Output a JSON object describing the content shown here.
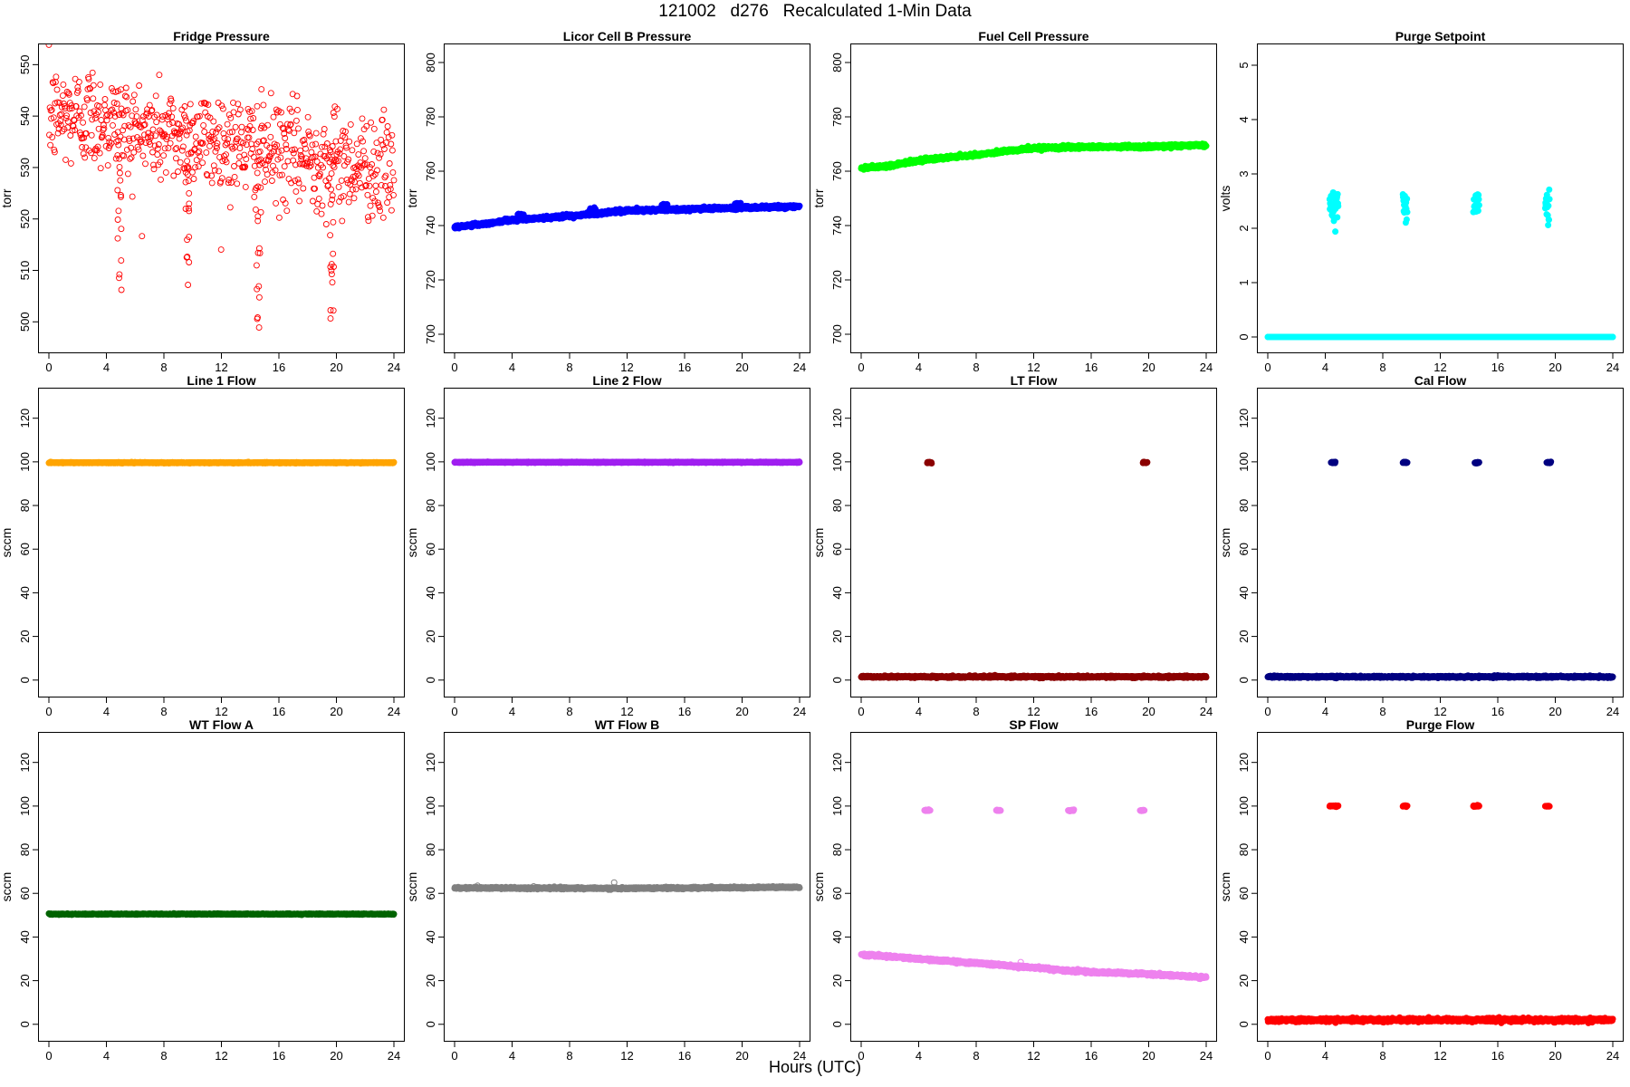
{
  "header": {
    "title": "121002   d276   Recalculated 1-Min Data"
  },
  "footer": {
    "xlabel": "Hours (UTC)"
  },
  "chart_data": [
    {
      "name": "fridge-pressure",
      "type": "scatter",
      "title": "Fridge Pressure",
      "ylabel": "torr",
      "color": "#ff0000",
      "marker": "open-circle",
      "xlim": [
        0,
        24
      ],
      "ylim": [
        496,
        552
      ],
      "xticks": [
        0,
        4,
        8,
        12,
        16,
        20,
        24
      ],
      "yticks": [
        500,
        510,
        520,
        530,
        540,
        550
      ],
      "trend": [
        [
          0,
          540
        ],
        [
          3,
          540
        ],
        [
          6,
          537
        ],
        [
          9,
          536
        ],
        [
          12,
          535
        ],
        [
          15,
          533
        ],
        [
          18,
          532
        ],
        [
          21,
          531
        ],
        [
          24,
          529
        ]
      ],
      "noise_sd": 5,
      "dips": [
        [
          4.9,
          506
        ],
        [
          9.6,
          501
        ],
        [
          14.6,
          498
        ],
        [
          19.7,
          497
        ]
      ]
    },
    {
      "name": "licor-cell-b-pressure",
      "type": "scatter",
      "title": "Licor Cell B Pressure",
      "ylabel": "torr",
      "color": "#0000ff",
      "marker": "filled",
      "xlim": [
        0,
        24
      ],
      "ylim": [
        697,
        803
      ],
      "xticks": [
        0,
        4,
        8,
        12,
        16,
        20,
        24
      ],
      "yticks": [
        700,
        720,
        740,
        760,
        780,
        800
      ],
      "trend": [
        [
          0,
          739.5
        ],
        [
          2,
          740.5
        ],
        [
          4,
          742
        ],
        [
          8,
          743.5
        ],
        [
          12,
          745.5
        ],
        [
          16,
          746
        ],
        [
          20,
          746.5
        ],
        [
          24,
          747
        ]
      ],
      "noise_sd": 0.3,
      "bumps": [
        [
          4.6,
          744
        ],
        [
          9.6,
          746
        ],
        [
          14.6,
          747.5
        ],
        [
          19.7,
          748
        ]
      ]
    },
    {
      "name": "fuel-cell-pressure",
      "type": "scatter",
      "title": "Fuel Cell Pressure",
      "ylabel": "torr",
      "color": "#00ff00",
      "marker": "filled",
      "xlim": [
        0,
        24
      ],
      "ylim": [
        697,
        803
      ],
      "xticks": [
        0,
        4,
        8,
        12,
        16,
        20,
        24
      ],
      "yticks": [
        700,
        720,
        740,
        760,
        780,
        800
      ],
      "trend": [
        [
          0,
          761
        ],
        [
          2,
          762
        ],
        [
          4,
          764
        ],
        [
          8,
          766
        ],
        [
          12,
          768.5
        ],
        [
          16,
          769
        ],
        [
          20,
          769
        ],
        [
          23,
          769.5
        ],
        [
          24,
          769.5
        ]
      ],
      "noise_sd": 0.3
    },
    {
      "name": "purge-setpoint",
      "type": "scatter",
      "title": "Purge Setpoint",
      "ylabel": "volts",
      "color": "#00ffff",
      "marker": "filled",
      "xlim": [
        0,
        24
      ],
      "ylim": [
        -0.1,
        5.2
      ],
      "xticks": [
        0,
        4,
        8,
        12,
        16,
        20,
        24
      ],
      "yticks": [
        0,
        1,
        2,
        3,
        4,
        5
      ],
      "baseline": 0,
      "noise_sd": 0,
      "pulses": [
        [
          4.3,
          4.9,
          2.43
        ],
        [
          9.4,
          9.7,
          2.43
        ],
        [
          14.3,
          14.7,
          2.43
        ],
        [
          19.3,
          19.6,
          2.43
        ]
      ]
    },
    {
      "name": "line-1-flow",
      "type": "scatter",
      "title": "Line 1 Flow",
      "ylabel": "sccm",
      "color": "#ffa500",
      "marker": "filled",
      "xlim": [
        0,
        24
      ],
      "ylim": [
        -3,
        129
      ],
      "xticks": [
        0,
        4,
        8,
        12,
        16,
        20,
        24
      ],
      "yticks": [
        0,
        20,
        40,
        60,
        80,
        100,
        120
      ],
      "baseline": 99.6,
      "noise_sd": 0.1
    },
    {
      "name": "line-2-flow",
      "type": "scatter",
      "title": "Line 2 Flow",
      "ylabel": "sccm",
      "color": "#a020f0",
      "marker": "filled",
      "xlim": [
        0,
        24
      ],
      "ylim": [
        -3,
        129
      ],
      "xticks": [
        0,
        4,
        8,
        12,
        16,
        20,
        24
      ],
      "yticks": [
        0,
        20,
        40,
        60,
        80,
        100,
        120
      ],
      "baseline": 99.8,
      "noise_sd": 0.1
    },
    {
      "name": "lt-flow",
      "type": "scatter",
      "title": "LT Flow",
      "ylabel": "sccm",
      "color": "#8b0000",
      "marker": "filled",
      "xlim": [
        0,
        24
      ],
      "ylim": [
        -3,
        129
      ],
      "xticks": [
        0,
        4,
        8,
        12,
        16,
        20,
        24
      ],
      "yticks": [
        0,
        20,
        40,
        60,
        80,
        100,
        120
      ],
      "baseline": 1.5,
      "noise_sd": 0.2,
      "pulses": [
        [
          4.6,
          4.9,
          99.7
        ],
        [
          19.6,
          19.9,
          99.7
        ]
      ]
    },
    {
      "name": "cal-flow",
      "type": "scatter",
      "title": "Cal Flow",
      "ylabel": "sccm",
      "color": "#000080",
      "marker": "filled",
      "xlim": [
        0,
        24
      ],
      "ylim": [
        -3,
        129
      ],
      "xticks": [
        0,
        4,
        8,
        12,
        16,
        20,
        24
      ],
      "yticks": [
        0,
        20,
        40,
        60,
        80,
        100,
        120
      ],
      "baseline": 1.5,
      "noise_sd": 0.2,
      "pulses": [
        [
          4.4,
          4.7,
          99.7
        ],
        [
          9.4,
          9.7,
          99.7
        ],
        [
          14.4,
          14.7,
          99.7
        ],
        [
          19.4,
          19.7,
          99.7
        ]
      ]
    },
    {
      "name": "wt-flow-a",
      "type": "scatter",
      "title": "WT Flow A",
      "ylabel": "sccm",
      "color": "#006400",
      "marker": "filled",
      "xlim": [
        0,
        24
      ],
      "ylim": [
        -3,
        129
      ],
      "xticks": [
        0,
        4,
        8,
        12,
        16,
        20,
        24
      ],
      "yticks": [
        0,
        20,
        40,
        60,
        80,
        100,
        120
      ],
      "baseline": 50.5,
      "noise_sd": 0.1
    },
    {
      "name": "wt-flow-b",
      "type": "scatter",
      "title": "WT Flow B",
      "ylabel": "sccm",
      "color": "#808080",
      "marker": "filled",
      "xlim": [
        0,
        24
      ],
      "ylim": [
        -3,
        129
      ],
      "xticks": [
        0,
        4,
        8,
        12,
        16,
        20,
        24
      ],
      "yticks": [
        0,
        20,
        40,
        60,
        80,
        100,
        120
      ],
      "trend": [
        [
          0,
          62.5
        ],
        [
          12,
          62.3
        ],
        [
          24,
          62.8
        ]
      ],
      "noise_sd": 0.2,
      "outliers": [
        [
          1.6,
          63.5
        ],
        [
          5.5,
          63.2
        ],
        [
          11.1,
          65
        ]
      ]
    },
    {
      "name": "sp-flow",
      "type": "scatter",
      "title": "SP Flow",
      "ylabel": "sccm",
      "color": "#ee82ee",
      "marker": "filled",
      "xlim": [
        0,
        24
      ],
      "ylim": [
        -3,
        129
      ],
      "xticks": [
        0,
        4,
        8,
        12,
        16,
        20,
        24
      ],
      "yticks": [
        0,
        20,
        40,
        60,
        80,
        100,
        120
      ],
      "trend": [
        [
          0,
          32
        ],
        [
          4,
          30
        ],
        [
          8,
          28
        ],
        [
          12,
          26
        ],
        [
          14.5,
          24.5
        ],
        [
          16,
          24
        ],
        [
          20,
          23
        ],
        [
          24,
          21.5
        ]
      ],
      "noise_sd": 0.3,
      "pulses": [
        [
          4.4,
          4.8,
          98
        ],
        [
          9.4,
          9.7,
          98
        ],
        [
          14.4,
          14.8,
          98
        ],
        [
          19.4,
          19.7,
          98
        ]
      ],
      "outliers": [
        [
          11.1,
          28.5
        ]
      ]
    },
    {
      "name": "purge-flow",
      "type": "scatter",
      "title": "Purge Flow",
      "ylabel": "sccm",
      "color": "#ff0000",
      "marker": "filled",
      "xlim": [
        0,
        24
      ],
      "ylim": [
        -3,
        129
      ],
      "xticks": [
        0,
        4,
        8,
        12,
        16,
        20,
        24
      ],
      "yticks": [
        0,
        20,
        40,
        60,
        80,
        100,
        120
      ],
      "baseline": 2,
      "noise_sd": 0.4,
      "pulses": [
        [
          4.3,
          4.9,
          100
        ],
        [
          9.4,
          9.7,
          100
        ],
        [
          14.3,
          14.7,
          100
        ],
        [
          19.3,
          19.6,
          100
        ]
      ]
    }
  ]
}
